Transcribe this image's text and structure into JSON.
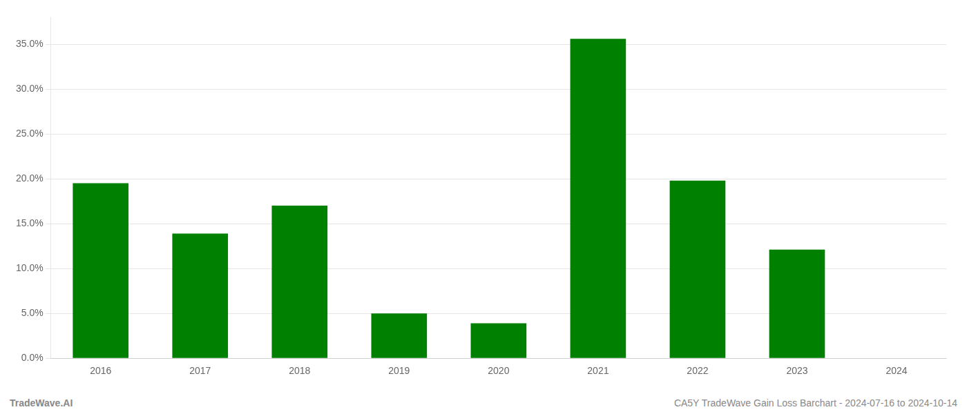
{
  "chart_data": {
    "type": "bar",
    "categories": [
      "2016",
      "2017",
      "2018",
      "2019",
      "2020",
      "2021",
      "2022",
      "2023",
      "2024"
    ],
    "values": [
      0.195,
      0.139,
      0.17,
      0.05,
      0.039,
      0.356,
      0.198,
      0.121,
      0.0
    ],
    "color": "#008000",
    "ylim": [
      0,
      0.38
    ],
    "yticks": [
      {
        "value": 0.0,
        "label": "0.0%"
      },
      {
        "value": 0.05,
        "label": "5.0%"
      },
      {
        "value": 0.1,
        "label": "10.0%"
      },
      {
        "value": 0.15,
        "label": "15.0%"
      },
      {
        "value": 0.2,
        "label": "20.0%"
      },
      {
        "value": 0.25,
        "label": "25.0%"
      },
      {
        "value": 0.3,
        "label": "30.0%"
      },
      {
        "value": 0.35,
        "label": "35.0%"
      }
    ],
    "grid": true,
    "annotations": [
      "TradeWave.AI",
      "CA5Y TradeWave Gain Loss Barchart - 2024-07-16 to 2024-10-14"
    ]
  }
}
